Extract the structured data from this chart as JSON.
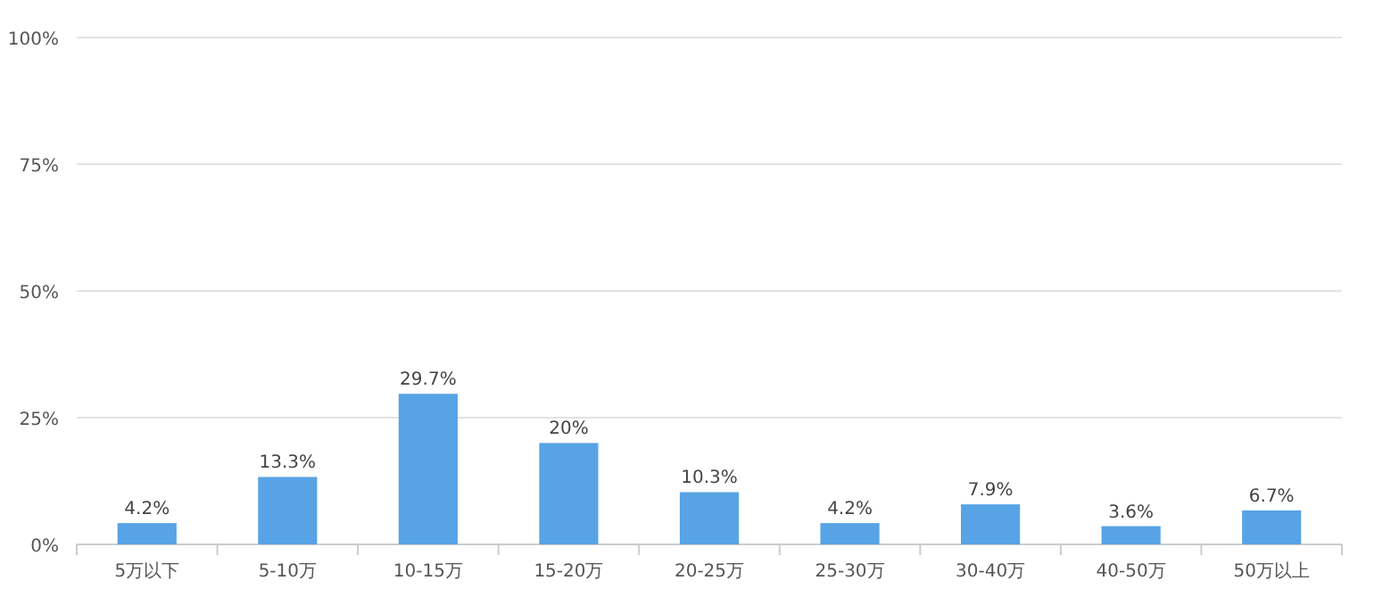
{
  "chart_data": {
    "type": "bar",
    "categories": [
      "5万以下",
      "5-10万",
      "10-15万",
      "15-20万",
      "20-25万",
      "25-30万",
      "30-40万",
      "40-50万",
      "50万以上"
    ],
    "values": [
      4.2,
      13.3,
      29.7,
      20,
      10.3,
      4.2,
      7.9,
      3.6,
      6.7
    ],
    "value_labels": [
      "4.2%",
      "13.3%",
      "29.7%",
      "20%",
      "10.3%",
      "4.2%",
      "7.9%",
      "3.6%",
      "6.7%"
    ],
    "color": "#57a3e5",
    "ylim": [
      0,
      100
    ],
    "yticks": [
      {
        "value": 0,
        "label": "0%"
      },
      {
        "value": 25,
        "label": "25%"
      },
      {
        "value": 50,
        "label": "50%"
      },
      {
        "value": 75,
        "label": "75%"
      },
      {
        "value": 100,
        "label": "100%"
      }
    ],
    "grid": "y"
  }
}
